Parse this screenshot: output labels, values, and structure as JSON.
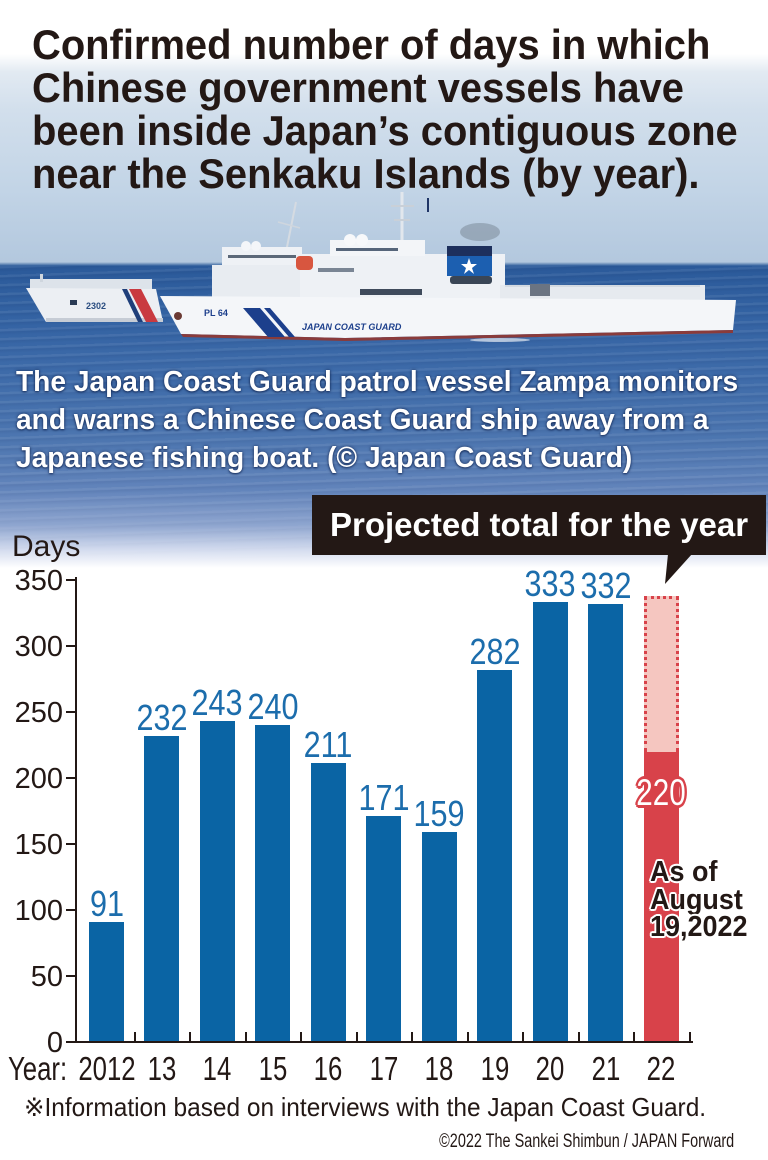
{
  "title": {
    "lines": [
      "Confirmed number of days in which",
      "Chinese government vessels have",
      "been inside Japan’s contiguous zone",
      "near the Senkaku Islands (by year)."
    ]
  },
  "photo": {
    "caption_lines": [
      "The Japan Coast Guard patrol vessel Zampa monitors",
      "and warns a Chinese Coast Guard ship away from a",
      "Japanese fishing boat. (© Japan Coast Guard)"
    ],
    "ship_markings": {
      "main_pennant": "PL 64",
      "main_hull_text": "JAPAN COAST GUARD",
      "other_pennant": "2302"
    }
  },
  "chart": {
    "y_axis_label": "Days",
    "x_axis_prefix": "Year:",
    "projected_callout": "Projected total for the year",
    "as_of_lines": [
      "As of",
      "August",
      "19,2022"
    ]
  },
  "footer": {
    "note": "※Information based on interviews with the Japan Coast Guard.",
    "credit": "©2022 The Sankei Shimbun / JAPAN Forward"
  },
  "colors": {
    "bar_blue": "#0a64a4",
    "label_blue": "#1c6dac",
    "bar_red": "#d8424a",
    "projected_pink": "#f5c6c0",
    "callout_bg": "#231815",
    "text_dark": "#231815"
  },
  "chart_data": {
    "type": "bar",
    "title": "Confirmed number of days in which Chinese government vessels have been inside Japan’s contiguous zone near the Senkaku Islands (by year).",
    "categories": [
      "2012",
      "13",
      "14",
      "15",
      "16",
      "17",
      "18",
      "19",
      "20",
      "21",
      "22"
    ],
    "series": [
      {
        "name": "Confirmed days",
        "values": [
          91,
          232,
          243,
          240,
          211,
          171,
          159,
          282,
          333,
          332,
          220
        ]
      },
      {
        "name": "Projected total for the year",
        "values": [
          null,
          null,
          null,
          null,
          null,
          null,
          null,
          null,
          null,
          null,
          338
        ]
      }
    ],
    "xlabel": "Year:",
    "ylabel": "Days",
    "ylim": [
      0,
      350
    ],
    "yticks": [
      0,
      50,
      100,
      150,
      200,
      250,
      300,
      350
    ],
    "grid": false,
    "legend": "none",
    "annotations": [
      {
        "text": "Projected total for the year",
        "target": "22"
      },
      {
        "text": "As of August 19,2022",
        "target": "22"
      }
    ]
  }
}
